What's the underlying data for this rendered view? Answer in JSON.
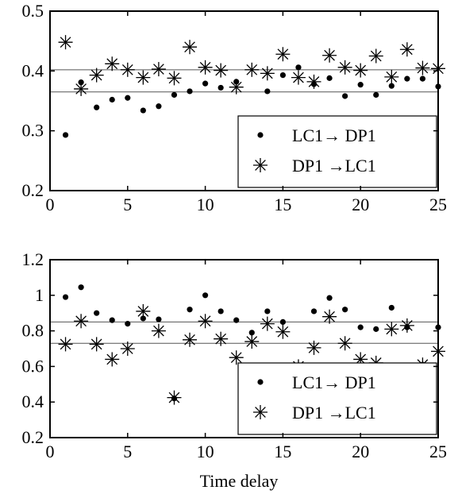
{
  "colors": {
    "axis": "#000000",
    "marker": "#000000",
    "background": "#ffffff"
  },
  "chart_data": [
    {
      "type": "scatter",
      "title": "",
      "xlabel": "",
      "ylabel": "",
      "xlim": [
        0,
        25
      ],
      "ylim": [
        0.2,
        0.5
      ],
      "xticks": [
        "0",
        "5",
        "10",
        "15",
        "20",
        "25"
      ],
      "yticks": [
        "0.2",
        "0.3",
        "0.4",
        "0.5"
      ],
      "grid": false,
      "legend_position": "bottom-right",
      "x": [
        1,
        2,
        3,
        4,
        5,
        6,
        7,
        8,
        9,
        10,
        11,
        12,
        13,
        14,
        15,
        16,
        17,
        18,
        19,
        20,
        21,
        22,
        23,
        24,
        25
      ],
      "series": [
        {
          "name": "LC1→ DP1",
          "marker": "dot",
          "values": [
            0.293,
            0.381,
            0.339,
            0.352,
            0.355,
            0.334,
            0.341,
            0.36,
            0.366,
            0.379,
            0.372,
            0.382,
            0.32,
            0.366,
            0.393,
            0.406,
            0.378,
            0.388,
            0.358,
            0.377,
            0.36,
            0.375,
            0.387,
            0.387,
            0.374
          ]
        },
        {
          "name": "DP1 →LC1",
          "marker": "star",
          "values": [
            0.448,
            0.37,
            0.393,
            0.412,
            0.402,
            0.389,
            0.403,
            0.388,
            0.44,
            0.406,
            0.401,
            0.373,
            0.402,
            0.396,
            0.428,
            0.389,
            0.382,
            0.426,
            0.406,
            0.401,
            0.425,
            0.39,
            0.436,
            0.405,
            0.404
          ]
        }
      ],
      "reference_lines": [
        {
          "y": 0.365,
          "x_range": [
            0,
            25
          ]
        },
        {
          "y": 0.402,
          "x_range": [
            0,
            25
          ]
        }
      ]
    },
    {
      "type": "scatter",
      "title": "",
      "xlabel": "Time delay",
      "ylabel": "",
      "xlim": [
        0,
        25
      ],
      "ylim": [
        0.2,
        1.2
      ],
      "xticks": [
        "0",
        "5",
        "10",
        "15",
        "20",
        "25"
      ],
      "yticks": [
        "0.2",
        "0.4",
        "0.6",
        "0.8",
        "1",
        "1.2"
      ],
      "grid": false,
      "legend_position": "bottom-right",
      "x": [
        1,
        2,
        3,
        4,
        5,
        6,
        7,
        8,
        9,
        10,
        11,
        12,
        13,
        14,
        15,
        16,
        17,
        18,
        19,
        20,
        21,
        22,
        23,
        24,
        25
      ],
      "series": [
        {
          "name": "LC1→ DP1",
          "marker": "dot",
          "values": [
            0.99,
            1.045,
            0.9,
            0.86,
            0.84,
            0.87,
            0.865,
            0.42,
            0.92,
            1.0,
            0.91,
            0.86,
            0.79,
            0.91,
            0.85,
            0.6,
            0.91,
            0.985,
            0.92,
            0.82,
            0.81,
            0.93,
            0.82,
            0.61,
            0.82
          ]
        },
        {
          "name": "DP1 →LC1",
          "marker": "star",
          "values": [
            0.725,
            0.855,
            0.725,
            0.64,
            0.7,
            0.91,
            0.8,
            0.425,
            0.75,
            0.855,
            0.755,
            0.65,
            0.74,
            0.84,
            0.795,
            0.6,
            0.705,
            0.88,
            0.73,
            0.64,
            0.62,
            0.81,
            0.83,
            0.61,
            0.685
          ]
        }
      ],
      "reference_lines": [
        {
          "y": 0.85,
          "x_range": [
            0,
            25
          ]
        },
        {
          "y": 0.73,
          "x_range": [
            0,
            25
          ]
        }
      ]
    }
  ]
}
